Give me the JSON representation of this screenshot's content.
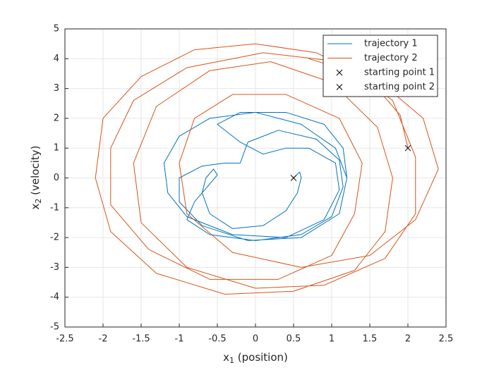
{
  "chart_data": {
    "type": "line",
    "xlabel": [
      "x",
      "1",
      " (position)"
    ],
    "ylabel": [
      "x",
      "2",
      " (velocity)"
    ],
    "xlim": [
      -2.5,
      2.5
    ],
    "ylim": [
      -5,
      5
    ],
    "xticks": [
      -2.5,
      -2,
      -1.5,
      -1,
      -0.5,
      0,
      0.5,
      1,
      1.5,
      2,
      2.5
    ],
    "yticks": [
      -5,
      -4,
      -3,
      -2,
      -1,
      0,
      1,
      2,
      3,
      4,
      5
    ],
    "grid": true,
    "legend": "upper right",
    "series": [
      {
        "name": "trajectory 1",
        "color": "#0072bd",
        "marker": "none",
        "x": [
          0.5,
          0.58,
          0.6,
          0.55,
          0.4,
          0.1,
          -0.3,
          -0.6,
          -0.7,
          -0.65,
          -0.55,
          -0.5,
          -0.6,
          -0.8,
          -0.9,
          -0.6,
          0,
          0.6,
          1.0,
          1.15,
          1.1,
          0.8,
          0.3,
          -0.1,
          -0.2,
          -0.4,
          -0.7,
          -1.0,
          -1.0,
          -0.7,
          -0.1,
          0.6,
          1.1,
          1.2,
          1.05,
          0.6,
          0,
          -0.6,
          -1.0,
          -1.2,
          -1.15,
          -0.9,
          -0.3,
          0.4,
          0.9,
          1.1,
          1.05,
          0.7,
          0.4,
          0.1,
          -0.2,
          -0.5,
          -0.2,
          0.4,
          0.9,
          1.15,
          1.2
        ],
        "values": [
          0,
          0.2,
          0,
          -0.5,
          -1.1,
          -1.6,
          -1.7,
          -1.2,
          -0.5,
          0,
          0.3,
          0.1,
          -0.2,
          -0.8,
          -1.4,
          -1.9,
          -2.1,
          -1.9,
          -1.3,
          -0.3,
          0.6,
          1.3,
          1.6,
          1.2,
          0.5,
          0.5,
          0.4,
          0,
          -0.8,
          -1.6,
          -2.1,
          -2.0,
          -1.2,
          0,
          1.0,
          1.8,
          2.2,
          2.0,
          1.4,
          0.5,
          -0.5,
          -1.3,
          -1.9,
          -2.0,
          -1.4,
          -0.4,
          0.5,
          1.0,
          1.0,
          0.8,
          1.2,
          1.8,
          2.2,
          2.2,
          1.8,
          1.0,
          0
        ]
      },
      {
        "name": "trajectory 2",
        "color": "#d95319",
        "marker": "none",
        "x": [
          2,
          1.9,
          1.5,
          0.8,
          0,
          -0.8,
          -1.5,
          -2,
          -2.1,
          -1.9,
          -1.3,
          -0.4,
          0.5,
          1.3,
          1.7,
          1.8,
          1.6,
          1.0,
          0.2,
          -0.6,
          -1.3,
          -1.6,
          -1.5,
          -0.9,
          0,
          0.9,
          1.7,
          2.1,
          2.1,
          1.8,
          1.1,
          0.1,
          -0.9,
          -1.6,
          -1.9,
          -1.9,
          -1.4,
          -0.6,
          0.3,
          1.0,
          1.3,
          1.4,
          1.1,
          0.4,
          -0.3,
          -0.8,
          -1.0,
          -0.9,
          -0.3,
          0.6,
          1.5,
          2.1,
          2.4,
          2.2,
          1.6,
          0.7
        ],
        "values": [
          1,
          2.1,
          3.3,
          4.2,
          4.5,
          4.3,
          3.4,
          2,
          0,
          -1.8,
          -3.2,
          -3.9,
          -3.8,
          -3.1,
          -1.8,
          0,
          1.7,
          3.2,
          3.9,
          3.6,
          2.4,
          0.5,
          -1.5,
          -3.0,
          -3.7,
          -3.6,
          -2.7,
          -1.2,
          0.7,
          2.6,
          3.9,
          4.2,
          3.7,
          2.6,
          1.0,
          -0.9,
          -2.4,
          -3.4,
          -3.4,
          -2.6,
          -1.2,
          0.5,
          2.0,
          2.8,
          2.8,
          2.0,
          0.5,
          -1.2,
          -2.5,
          -3.0,
          -2.6,
          -1.4,
          0.3,
          2.0,
          3.3,
          4.0
        ]
      },
      {
        "name": "starting point 1",
        "color": "#000000",
        "marker": "x",
        "x": [
          0.5
        ],
        "values": [
          0
        ]
      },
      {
        "name": "starting point 2",
        "color": "#000000",
        "marker": "x",
        "x": [
          2
        ],
        "values": [
          1
        ]
      }
    ]
  }
}
